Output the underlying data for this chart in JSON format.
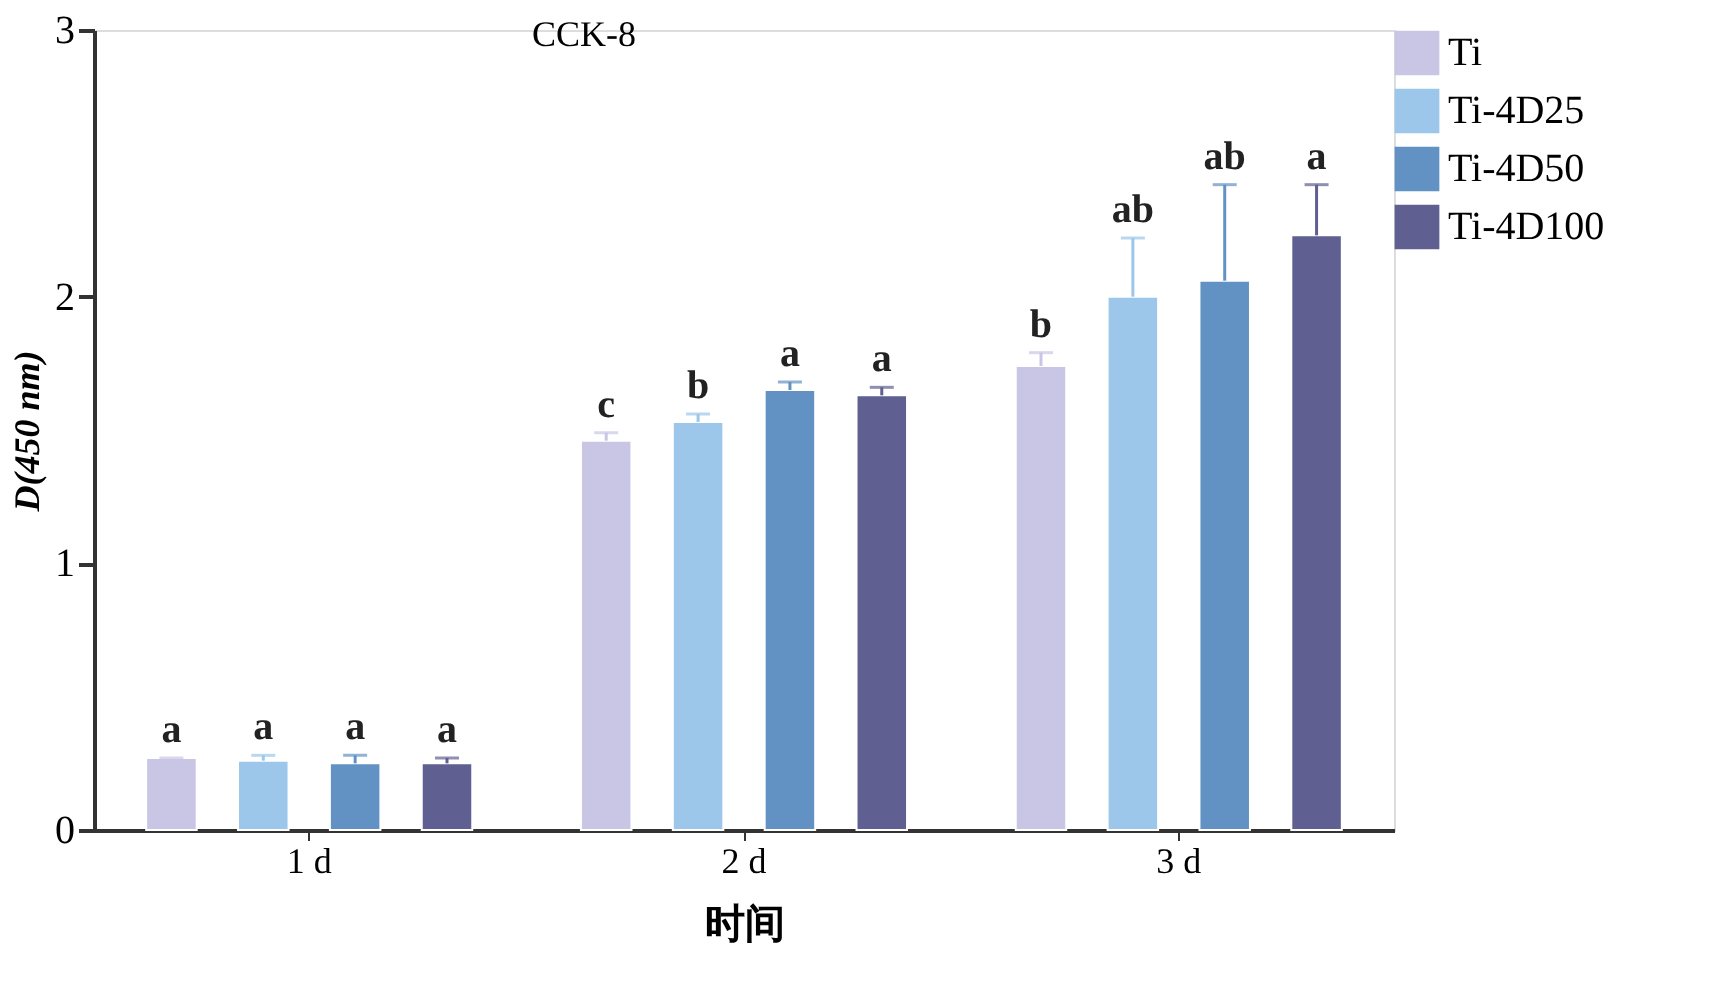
{
  "chart_data": {
    "type": "bar",
    "title": "CCK-8",
    "xlabel": "时间",
    "ylabel": "D(450 nm)",
    "categories": [
      "1 d",
      "2 d",
      "3 d"
    ],
    "ylim": [
      0,
      3
    ],
    "yticks": [
      0,
      1,
      2,
      3
    ],
    "grid": false,
    "legend": "top right",
    "series": [
      {
        "name": "Ti",
        "color": "#c8c6e4",
        "values": [
          0.27,
          1.46,
          1.74
        ],
        "errors": [
          [
            0.27,
            0.27
          ],
          [
            1.46,
            1.49
          ],
          [
            1.74,
            1.79
          ]
        ],
        "value_labels": [
          "a",
          "c",
          "b"
        ]
      },
      {
        "name": "Ti-4D25",
        "color": "#9cc6ea",
        "values": [
          0.26,
          1.53,
          2.0
        ],
        "errors": [
          [
            0.26,
            0.28
          ],
          [
            1.53,
            1.56
          ],
          [
            2.0,
            2.22
          ]
        ],
        "value_labels": [
          "a",
          "b",
          "ab"
        ]
      },
      {
        "name": "Ti-4D50",
        "color": "#6292c3",
        "values": [
          0.25,
          1.65,
          2.06
        ],
        "errors": [
          [
            0.25,
            0.28
          ],
          [
            1.65,
            1.68
          ],
          [
            2.06,
            2.42
          ]
        ],
        "value_labels": [
          "a",
          "a",
          "ab"
        ]
      },
      {
        "name": "Ti-4D100",
        "color": "#5f5f91",
        "values": [
          0.25,
          1.63,
          2.23
        ],
        "errors": [
          [
            0.25,
            0.27
          ],
          [
            1.63,
            1.66
          ],
          [
            2.23,
            2.42
          ]
        ],
        "value_labels": [
          "a",
          "a",
          "a"
        ]
      }
    ]
  }
}
